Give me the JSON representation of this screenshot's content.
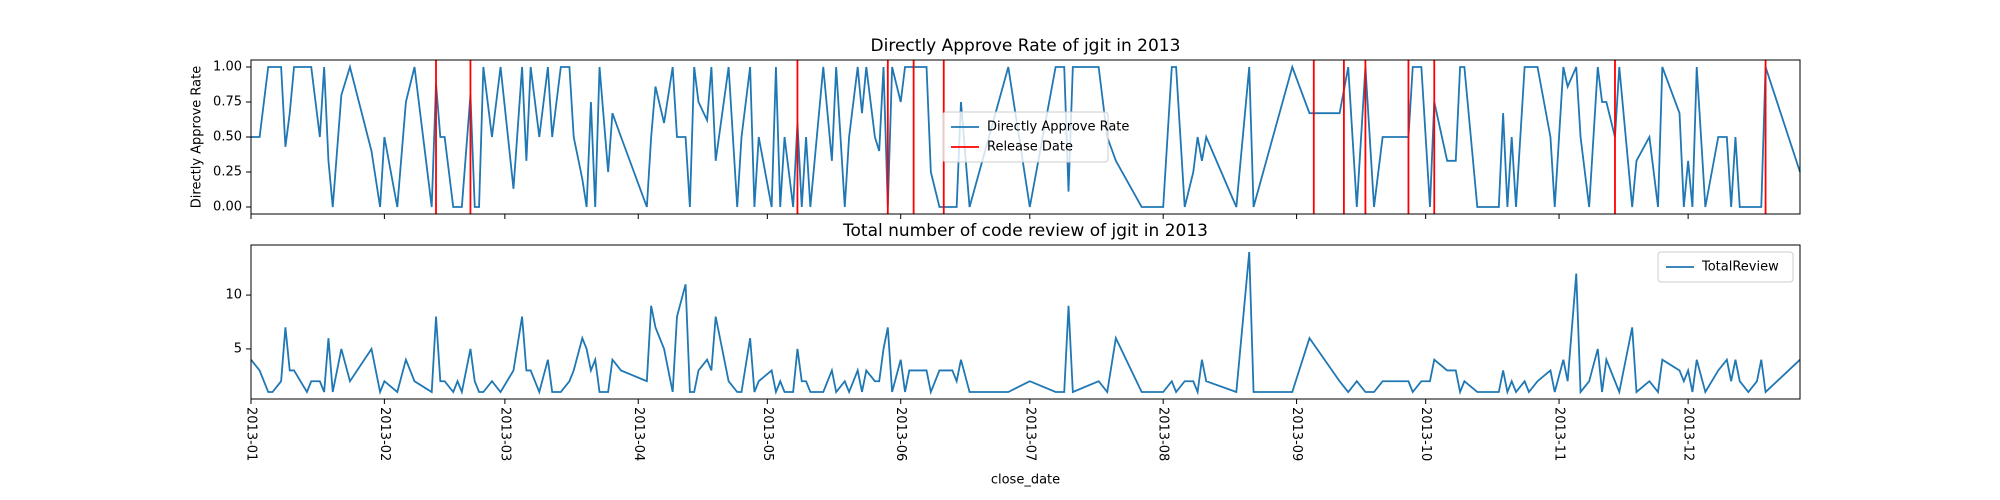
{
  "chart_data": [
    {
      "type": "line",
      "title": "Directly Approve Rate of jgit in 2013",
      "y_label": "Directly Approve Rate",
      "legend": "center",
      "x": [
        0,
        2,
        4,
        5,
        7,
        8,
        9,
        10,
        13,
        14,
        16,
        17,
        18,
        19,
        21,
        23,
        28,
        30,
        31,
        34,
        36,
        38,
        42,
        43,
        44,
        45,
        47,
        48,
        49,
        51,
        52,
        53,
        54,
        56,
        58,
        61,
        63,
        64,
        65,
        67,
        69,
        70,
        72,
        74,
        75,
        77,
        78,
        79,
        80,
        81,
        83,
        84,
        86,
        92,
        93,
        94,
        96,
        98,
        99,
        101,
        102,
        103,
        104,
        106,
        107,
        108,
        111,
        113,
        114,
        116,
        117,
        118,
        121,
        122,
        123,
        124,
        126,
        127,
        128,
        129,
        130,
        133,
        135,
        136,
        138,
        139,
        141,
        142,
        143,
        145,
        146,
        147,
        148,
        149,
        151,
        152,
        153,
        157,
        158,
        160,
        163,
        164,
        165,
        167,
        176,
        181,
        187,
        189,
        190,
        191,
        197,
        199,
        201,
        207,
        211,
        212,
        214,
        215,
        217,
        219,
        220,
        221,
        222,
        229,
        232,
        233,
        242,
        246,
        253,
        255,
        257,
        259,
        261,
        263,
        269,
        270,
        272,
        274,
        275,
        278,
        280,
        281,
        282,
        285,
        290,
        291,
        292,
        293,
        294,
        296,
        297,
        299,
        302,
        303,
        305,
        306,
        308,
        309,
        311,
        313,
        314,
        315,
        317,
        318,
        321,
        322,
        325,
        327,
        328,
        332,
        333,
        334,
        335,
        336,
        338,
        341,
        343,
        344,
        345,
        346,
        348,
        350,
        351,
        352,
        360
      ],
      "series": [
        {
          "name": "Directly Approve Rate",
          "color": "#1f77b4",
          "values": [
            0.5,
            0.5,
            1,
            1,
            1,
            0.43,
            0.67,
            1,
            1,
            1,
            0.5,
            1,
            0.33,
            0,
            0.8,
            1,
            0.4,
            0,
            0.5,
            0,
            0.75,
            1,
            0,
            0.88,
            0.5,
            0.5,
            0,
            0,
            0,
            0.8,
            0,
            0,
            1,
            0.5,
            1,
            0.13,
            1,
            0.33,
            1,
            0.5,
            1,
            0.5,
            1,
            1,
            0.5,
            0.2,
            0,
            0.75,
            0,
            1,
            0.25,
            0.67,
            0.5,
            0,
            0.5,
            0.86,
            0.6,
            1,
            0.5,
            0.5,
            0,
            1,
            0.75,
            0.62,
            1,
            0.33,
            1,
            0,
            0.5,
            1,
            0,
            0.5,
            0,
            1,
            0,
            0.5,
            0,
            0.6,
            0,
            0.5,
            0,
            1,
            0.33,
            1,
            0,
            0.5,
            1,
            0.67,
            1,
            0.5,
            0.4,
            1,
            0,
            1,
            0.75,
            1,
            1,
            1,
            0.25,
            0,
            0,
            0,
            0.75,
            0,
            1,
            0,
            1,
            1,
            0.11,
            1,
            1,
            0.5,
            0.33,
            0,
            0,
            0,
            1,
            1,
            0,
            0.25,
            0.5,
            0.33,
            0.5,
            0,
            1,
            0,
            1,
            0.67,
            0.67,
            1,
            0,
            1,
            0,
            0.5,
            0.5,
            1,
            1,
            0,
            0.75,
            0.33,
            0.33,
            1,
            1,
            0,
            0,
            0.67,
            0,
            0.5,
            0,
            1,
            1,
            1,
            0.5,
            0,
            1,
            0.86,
            1,
            0.5,
            0,
            1,
            0.75,
            0.75,
            0.5,
            1,
            0,
            0.33,
            0.5,
            0,
            1,
            0.67,
            0,
            0.33,
            0,
            1,
            0,
            0.5,
            0.5,
            0,
            0.5,
            0,
            0,
            0,
            0,
            1,
            0.25
          ]
        }
      ],
      "release_dates": {
        "name": "Release Date",
        "color": "#ff0000",
        "x": [
          43,
          51,
          127,
          148,
          154,
          161,
          247,
          254,
          259,
          269,
          275,
          317,
          352
        ]
      },
      "xlim": [
        0,
        360
      ],
      "ylim": [
        -0.05,
        1.05
      ],
      "yticks": [
        {
          "value": 0,
          "label": "0.00"
        },
        {
          "value": 0.25,
          "label": "0.25"
        },
        {
          "value": 0.5,
          "label": "0.50"
        },
        {
          "value": 0.75,
          "label": "0.75"
        },
        {
          "value": 1,
          "label": "1.00"
        }
      ]
    },
    {
      "type": "line",
      "title": "Total number of code review of jgit in 2013",
      "x_label": "close_date",
      "legend": "upper right",
      "x": [
        0,
        2,
        4,
        5,
        7,
        8,
        9,
        10,
        13,
        14,
        16,
        17,
        18,
        19,
        21,
        23,
        28,
        30,
        31,
        34,
        36,
        38,
        42,
        43,
        44,
        45,
        47,
        48,
        49,
        51,
        52,
        53,
        54,
        56,
        58,
        61,
        63,
        64,
        65,
        67,
        69,
        70,
        72,
        74,
        75,
        77,
        78,
        79,
        80,
        81,
        83,
        84,
        86,
        92,
        93,
        94,
        96,
        98,
        99,
        101,
        102,
        103,
        104,
        106,
        107,
        108,
        111,
        113,
        114,
        116,
        117,
        118,
        121,
        122,
        123,
        124,
        126,
        127,
        128,
        129,
        130,
        133,
        135,
        136,
        138,
        139,
        141,
        142,
        143,
        145,
        146,
        147,
        148,
        149,
        151,
        152,
        153,
        157,
        158,
        160,
        163,
        164,
        165,
        167,
        176,
        181,
        187,
        189,
        190,
        191,
        197,
        199,
        201,
        207,
        211,
        212,
        214,
        215,
        217,
        219,
        220,
        221,
        222,
        229,
        232,
        233,
        242,
        246,
        253,
        255,
        257,
        259,
        261,
        263,
        269,
        270,
        272,
        274,
        275,
        278,
        280,
        281,
        282,
        285,
        290,
        291,
        292,
        293,
        294,
        296,
        297,
        299,
        302,
        303,
        305,
        306,
        308,
        309,
        311,
        313,
        314,
        315,
        317,
        318,
        321,
        322,
        325,
        327,
        328,
        332,
        333,
        334,
        335,
        336,
        338,
        341,
        343,
        344,
        345,
        346,
        348,
        350,
        351,
        352,
        360
      ],
      "series": [
        {
          "name": "TotalReview",
          "color": "#1f77b4",
          "values": [
            4,
            3,
            1,
            1,
            2,
            7,
            3,
            3,
            1,
            2,
            2,
            1,
            6,
            1,
            5,
            2,
            5,
            1,
            2,
            1,
            4,
            2,
            1,
            8,
            2,
            2,
            1,
            2,
            1,
            5,
            2,
            1,
            1,
            2,
            1,
            3,
            8,
            3,
            3,
            1,
            4,
            1,
            1,
            2,
            3,
            6,
            5,
            3,
            4,
            1,
            1,
            4,
            3,
            2,
            9,
            7,
            5,
            1,
            8,
            11,
            1,
            1,
            3,
            4,
            3,
            8,
            2,
            1,
            1,
            6,
            1,
            2,
            3,
            1,
            2,
            1,
            1,
            5,
            2,
            2,
            1,
            1,
            3,
            1,
            2,
            1,
            3,
            1,
            3,
            2,
            2,
            5,
            7,
            1,
            4,
            1,
            3,
            3,
            1,
            3,
            3,
            2,
            4,
            1,
            1,
            2,
            1,
            1,
            9,
            1,
            2,
            1,
            6,
            1,
            1,
            1,
            2,
            1,
            2,
            2,
            1,
            4,
            2,
            1,
            14,
            1,
            1,
            6,
            2,
            1,
            2,
            1,
            1,
            2,
            2,
            1,
            2,
            2,
            4,
            3,
            3,
            1,
            2,
            1,
            1,
            3,
            1,
            2,
            1,
            2,
            1,
            2,
            3,
            1,
            4,
            2,
            12,
            1,
            2,
            5,
            1,
            4,
            2,
            1,
            7,
            1,
            2,
            1,
            4,
            3,
            2,
            3,
            1,
            4,
            1,
            3,
            4,
            2,
            4,
            2,
            1,
            2,
            4,
            1,
            4
          ]
        }
      ],
      "xlim": [
        0,
        360
      ],
      "ylim": [
        0.35,
        14.65
      ],
      "yticks": [
        5,
        10
      ],
      "xticks": [
        {
          "value": 0,
          "label": "2013-01"
        },
        {
          "value": 31,
          "label": "2013-02"
        },
        {
          "value": 59,
          "label": "2013-03"
        },
        {
          "value": 90,
          "label": "2013-04"
        },
        {
          "value": 120,
          "label": "2013-05"
        },
        {
          "value": 151,
          "label": "2013-06"
        },
        {
          "value": 181,
          "label": "2013-07"
        },
        {
          "value": 212,
          "label": "2013-08"
        },
        {
          "value": 243,
          "label": "2013-09"
        },
        {
          "value": 273,
          "label": "2013-10"
        },
        {
          "value": 304,
          "label": "2013-11"
        },
        {
          "value": 334,
          "label": "2013-12"
        }
      ]
    }
  ]
}
